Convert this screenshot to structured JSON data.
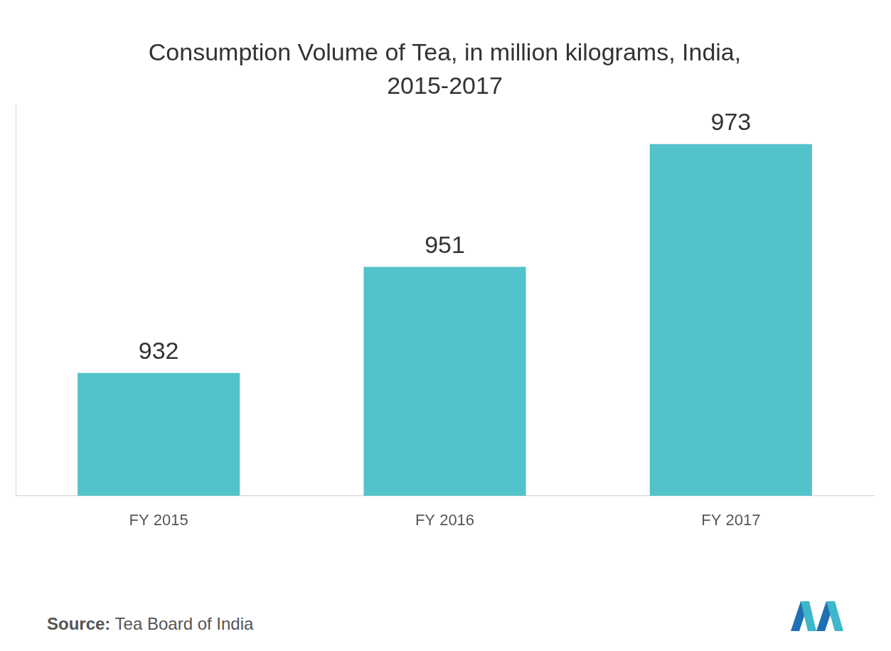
{
  "chart_data": {
    "type": "bar",
    "title": [
      "Consumption Volume of Tea, in million kilograms, India,",
      "2015-2017"
    ],
    "categories": [
      "FY 2015",
      "FY 2016",
      "FY 2017"
    ],
    "values": [
      932,
      951,
      973
    ],
    "color": "#52c3ca",
    "ylim": [
      910,
      980
    ],
    "yticks": [],
    "grid": false,
    "data_labels": true,
    "tick_labels": "x",
    "source_label": "Source:",
    "source": "Tea Board of India"
  }
}
